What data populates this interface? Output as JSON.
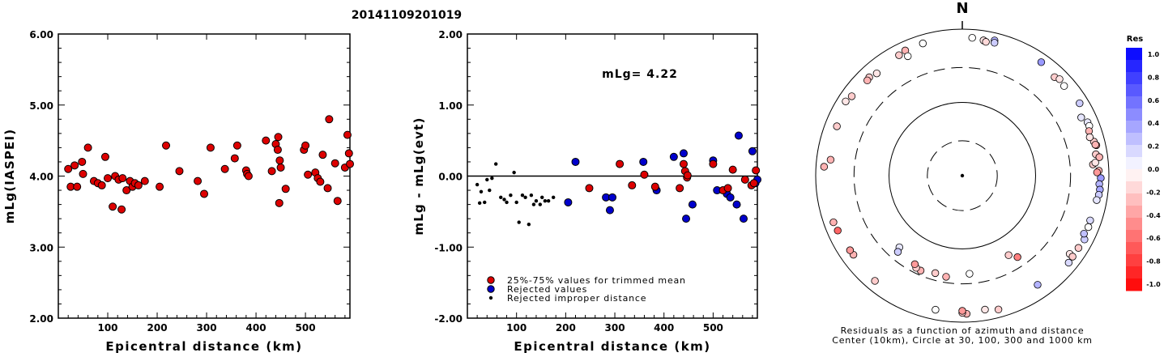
{
  "figure": {
    "title": "20141109201019",
    "north_label": "N"
  },
  "chart_data": [
    {
      "id": "left",
      "type": "scatter",
      "xlabel": "Epicentral distance (km)",
      "ylabel": "mLg(IASPEI)",
      "xlim": [
        0,
        590
      ],
      "ylim": [
        2.0,
        6.0
      ],
      "xticks": [
        {
          "v": 100,
          "label": "100"
        },
        {
          "v": 200,
          "label": "200"
        },
        {
          "v": 300,
          "label": "300"
        },
        {
          "v": 400,
          "label": "400"
        },
        {
          "v": 500,
          "label": "500"
        }
      ],
      "yticks": [
        {
          "v": 2.0,
          "label": "2.00"
        },
        {
          "v": 3.0,
          "label": "3.00"
        },
        {
          "v": 4.0,
          "label": "4.00"
        },
        {
          "v": 5.0,
          "label": "5.00"
        },
        {
          "v": 6.0,
          "label": "6.00"
        }
      ],
      "color": "#dd0000",
      "points": [
        [
          20,
          4.1
        ],
        [
          25,
          3.85
        ],
        [
          33,
          4.15
        ],
        [
          38,
          3.85
        ],
        [
          48,
          4.2
        ],
        [
          50,
          4.03
        ],
        [
          60,
          4.4
        ],
        [
          72,
          3.93
        ],
        [
          80,
          3.9
        ],
        [
          88,
          3.87
        ],
        [
          95,
          4.27
        ],
        [
          100,
          3.97
        ],
        [
          110,
          3.57
        ],
        [
          115,
          4.0
        ],
        [
          122,
          3.95
        ],
        [
          128,
          3.53
        ],
        [
          130,
          3.97
        ],
        [
          138,
          3.8
        ],
        [
          145,
          3.93
        ],
        [
          150,
          3.85
        ],
        [
          155,
          3.9
        ],
        [
          162,
          3.87
        ],
        [
          175,
          3.93
        ],
        [
          205,
          3.85
        ],
        [
          218,
          4.43
        ],
        [
          245,
          4.07
        ],
        [
          282,
          3.93
        ],
        [
          295,
          3.75
        ],
        [
          308,
          4.4
        ],
        [
          337,
          4.1
        ],
        [
          357,
          4.25
        ],
        [
          362,
          4.43
        ],
        [
          380,
          4.08
        ],
        [
          382,
          4.03
        ],
        [
          385,
          4.0
        ],
        [
          420,
          4.5
        ],
        [
          432,
          4.07
        ],
        [
          440,
          4.45
        ],
        [
          444,
          4.37
        ],
        [
          445,
          4.55
        ],
        [
          447,
          3.62
        ],
        [
          448,
          4.22
        ],
        [
          450,
          4.12
        ],
        [
          460,
          3.82
        ],
        [
          497,
          4.37
        ],
        [
          500,
          4.43
        ],
        [
          505,
          4.02
        ],
        [
          520,
          4.05
        ],
        [
          525,
          3.97
        ],
        [
          530,
          3.92
        ],
        [
          535,
          4.3
        ],
        [
          545,
          3.83
        ],
        [
          548,
          4.8
        ],
        [
          560,
          4.18
        ],
        [
          565,
          3.65
        ],
        [
          580,
          4.12
        ],
        [
          585,
          4.58
        ],
        [
          588,
          4.32
        ],
        [
          590,
          4.17
        ]
      ]
    },
    {
      "id": "middle",
      "type": "scatter",
      "xlabel": "Epicentral distance (km)",
      "ylabel": "mLg - mLg(evt)",
      "xlim": [
        0,
        590
      ],
      "ylim": [
        -2.0,
        2.0
      ],
      "xticks": [
        {
          "v": 100,
          "label": "100"
        },
        {
          "v": 200,
          "label": "200"
        },
        {
          "v": 300,
          "label": "300"
        },
        {
          "v": 400,
          "label": "400"
        },
        {
          "v": 500,
          "label": "500"
        }
      ],
      "yticks": [
        {
          "v": -2.0,
          "label": "-2.00"
        },
        {
          "v": -1.0,
          "label": "-1.00"
        },
        {
          "v": 0.0,
          "label": "0.00"
        },
        {
          "v": 1.0,
          "label": "1.00"
        },
        {
          "v": 2.0,
          "label": "2.00"
        }
      ],
      "annotation": "mLg= 4.22",
      "legend": [
        {
          "color": "#dd0000",
          "label": "25%-75% values for trimmed mean"
        },
        {
          "color": "#0000cc",
          "label": "Rejected values"
        },
        {
          "color": "#000000",
          "label": "Rejected improper distance"
        }
      ],
      "trimmed": [
        [
          248,
          -0.17
        ],
        [
          310,
          0.17
        ],
        [
          335,
          -0.13
        ],
        [
          360,
          0.02
        ],
        [
          382,
          -0.15
        ],
        [
          432,
          -0.17
        ],
        [
          440,
          0.17
        ],
        [
          443,
          0.07
        ],
        [
          447,
          -0.02
        ],
        [
          448,
          0.01
        ],
        [
          500,
          0.17
        ],
        [
          520,
          -0.2
        ],
        [
          530,
          -0.17
        ],
        [
          540,
          0.09
        ],
        [
          565,
          -0.05
        ],
        [
          578,
          -0.13
        ],
        [
          583,
          -0.1
        ],
        [
          587,
          0.08
        ]
      ],
      "rejected": [
        [
          205,
          -0.37
        ],
        [
          220,
          0.2
        ],
        [
          282,
          -0.3
        ],
        [
          290,
          -0.48
        ],
        [
          295,
          -0.3
        ],
        [
          358,
          0.2
        ],
        [
          385,
          -0.2
        ],
        [
          420,
          0.27
        ],
        [
          440,
          0.32
        ],
        [
          445,
          -0.6
        ],
        [
          458,
          -0.4
        ],
        [
          500,
          0.22
        ],
        [
          508,
          -0.2
        ],
        [
          528,
          -0.25
        ],
        [
          535,
          -0.3
        ],
        [
          548,
          -0.4
        ],
        [
          552,
          0.57
        ],
        [
          562,
          -0.6
        ],
        [
          580,
          0.35
        ],
        [
          586,
          -0.1
        ],
        [
          590,
          -0.05
        ]
      ],
      "improper": [
        [
          20,
          -0.12
        ],
        [
          25,
          -0.38
        ],
        [
          28,
          -0.22
        ],
        [
          35,
          -0.37
        ],
        [
          40,
          -0.05
        ],
        [
          45,
          -0.2
        ],
        [
          50,
          -0.03
        ],
        [
          58,
          0.17
        ],
        [
          68,
          -0.3
        ],
        [
          75,
          -0.33
        ],
        [
          80,
          -0.37
        ],
        [
          88,
          -0.27
        ],
        [
          95,
          0.05
        ],
        [
          100,
          -0.37
        ],
        [
          105,
          -0.65
        ],
        [
          112,
          -0.27
        ],
        [
          118,
          -0.3
        ],
        [
          125,
          -0.68
        ],
        [
          130,
          -0.27
        ],
        [
          135,
          -0.4
        ],
        [
          140,
          -0.35
        ],
        [
          148,
          -0.4
        ],
        [
          152,
          -0.3
        ],
        [
          158,
          -0.35
        ],
        [
          165,
          -0.35
        ],
        [
          175,
          -0.3
        ]
      ]
    },
    {
      "id": "polar",
      "type": "scatter",
      "caption_line1": "Residuals as a function of azimuth and distance",
      "caption_line2": "Center (10km), Circle at 30, 100, 300 and 1000 km",
      "colorbar_title": "Res",
      "colorbar_ticks": [
        "1.0",
        "0.8",
        "0.6",
        "0.4",
        "0.2",
        "0.0",
        "-0.2",
        "-0.4",
        "-0.6",
        "-0.8",
        "-1.0"
      ],
      "ring_radii_km": [
        30,
        100,
        300,
        1000
      ],
      "ring_styles": [
        "dashed",
        "solid",
        "dashed",
        "solid"
      ],
      "points": [
        {
          "az": 4.1,
          "dist": 770,
          "res": 0.0
        },
        {
          "az": 8.9,
          "dist": 740,
          "res": -0.1
        },
        {
          "az": 10.0,
          "dist": 715,
          "res": -0.15
        },
        {
          "az": 13.4,
          "dist": 790,
          "res": 0.3
        },
        {
          "az": 13.6,
          "dist": 735,
          "res": 0.2
        },
        {
          "az": 34.8,
          "dist": 770,
          "res": 0.4
        },
        {
          "az": 43.1,
          "dist": 695,
          "res": -0.2
        },
        {
          "az": 45.2,
          "dist": 740,
          "res": -0.1
        },
        {
          "az": 48.6,
          "dist": 710,
          "res": 0.0
        },
        {
          "az": 58.3,
          "dist": 760,
          "res": 0.2
        },
        {
          "az": 66.9,
          "dist": 720,
          "res": 0.1
        },
        {
          "az": 68.6,
          "dist": 725,
          "res": 0.0
        },
        {
          "az": 63.9,
          "dist": 640,
          "res": 0.1
        },
        {
          "az": 70.6,
          "dist": 680,
          "res": -0.3
        },
        {
          "az": 75.5,
          "dist": 715,
          "res": -0.2
        },
        {
          "az": 77.2,
          "dist": 750,
          "res": -0.4
        },
        {
          "az": 73.2,
          "dist": 655,
          "res": -0.1
        },
        {
          "az": 76.9,
          "dist": 730,
          "res": -0.3
        },
        {
          "az": 80.9,
          "dist": 700,
          "res": -0.2
        },
        {
          "az": 82.3,
          "dist": 770,
          "res": -0.3
        },
        {
          "az": 85.1,
          "dist": 615,
          "res": -0.2
        },
        {
          "az": 84.4,
          "dist": 665,
          "res": -0.1
        },
        {
          "az": 87.9,
          "dist": 730,
          "res": -0.3
        },
        {
          "az": 88.6,
          "dist": 690,
          "res": -0.4
        },
        {
          "az": 91.0,
          "dist": 775,
          "res": 0.4
        },
        {
          "az": 93.5,
          "dist": 745,
          "res": 0.3
        },
        {
          "az": 95.8,
          "dist": 770,
          "res": 0.35
        },
        {
          "az": 98.0,
          "dist": 760,
          "res": 0.2
        },
        {
          "az": 100.3,
          "dist": 730,
          "res": 0.1
        },
        {
          "az": 109.3,
          "dist": 705,
          "res": 0.15
        },
        {
          "az": 112.2,
          "dist": 720,
          "res": 0.0
        },
        {
          "az": 117.6,
          "dist": 760,
          "res": 0.2
        },
        {
          "az": 115.5,
          "dist": 690,
          "res": 0.25
        },
        {
          "az": 121.9,
          "dist": 735,
          "res": -0.2
        },
        {
          "az": 126.1,
          "dist": 650,
          "res": -0.1
        },
        {
          "az": 126.3,
          "dist": 735,
          "res": -0.2
        },
        {
          "az": 129.3,
          "dist": 750,
          "res": 0.15
        },
        {
          "az": 145.4,
          "dist": 645,
          "res": 0.3
        },
        {
          "az": 164.9,
          "dist": 780,
          "res": -0.2
        },
        {
          "az": 170.4,
          "dist": 715,
          "res": -0.1
        },
        {
          "az": 178.2,
          "dist": 770,
          "res": -0.3
        },
        {
          "az": 180.0,
          "dist": 745,
          "res": -0.2
        },
        {
          "az": 180.0,
          "dist": 700,
          "res": -0.4
        },
        {
          "az": 191.3,
          "dist": 735,
          "res": 0.0
        },
        {
          "az": 219.7,
          "dist": 735,
          "res": -0.2
        },
        {
          "az": 234.0,
          "dist": 685,
          "res": -0.3
        },
        {
          "az": 236.4,
          "dist": 690,
          "res": -0.4
        },
        {
          "az": 246.2,
          "dist": 720,
          "res": -0.6
        },
        {
          "az": 250.1,
          "dist": 740,
          "res": -0.3
        },
        {
          "az": 273.7,
          "dist": 775,
          "res": -0.3
        },
        {
          "az": 276.9,
          "dist": 645,
          "res": -0.3
        },
        {
          "az": 291.5,
          "dist": 690,
          "res": -0.2
        },
        {
          "az": 302.5,
          "dist": 770,
          "res": -0.1
        },
        {
          "az": 305.7,
          "dist": 720,
          "res": -0.2
        },
        {
          "az": 316.6,
          "dist": 705,
          "res": -0.2
        },
        {
          "az": 315.1,
          "dist": 685,
          "res": -0.3
        },
        {
          "az": 320.1,
          "dist": 660,
          "res": -0.1
        },
        {
          "az": 332.3,
          "dist": 720,
          "res": -0.2
        },
        {
          "az": 335.5,
          "dist": 755,
          "res": -0.3
        },
        {
          "az": 343.4,
          "dist": 765,
          "res": 0.0
        },
        {
          "az": 335.5,
          "dist": 620,
          "res": 0.0
        },
        {
          "az": 145.9,
          "dist": 220,
          "res": -0.5
        },
        {
          "az": 149.8,
          "dist": 180,
          "res": -0.2
        },
        {
          "az": 175.8,
          "dist": 220,
          "res": 0.0
        },
        {
          "az": 189.1,
          "dist": 250,
          "res": -0.3
        },
        {
          "az": 195.5,
          "dist": 240,
          "res": -0.2
        },
        {
          "az": 203.7,
          "dist": 260,
          "res": -0.3
        },
        {
          "az": 206.6,
          "dist": 255,
          "res": -0.2
        },
        {
          "az": 208.2,
          "dist": 235,
          "res": -0.4
        },
        {
          "az": 221.3,
          "dist": 200,
          "res": 0.1
        },
        {
          "az": 220.2,
          "dist": 230,
          "res": 0.2
        }
      ]
    }
  ]
}
